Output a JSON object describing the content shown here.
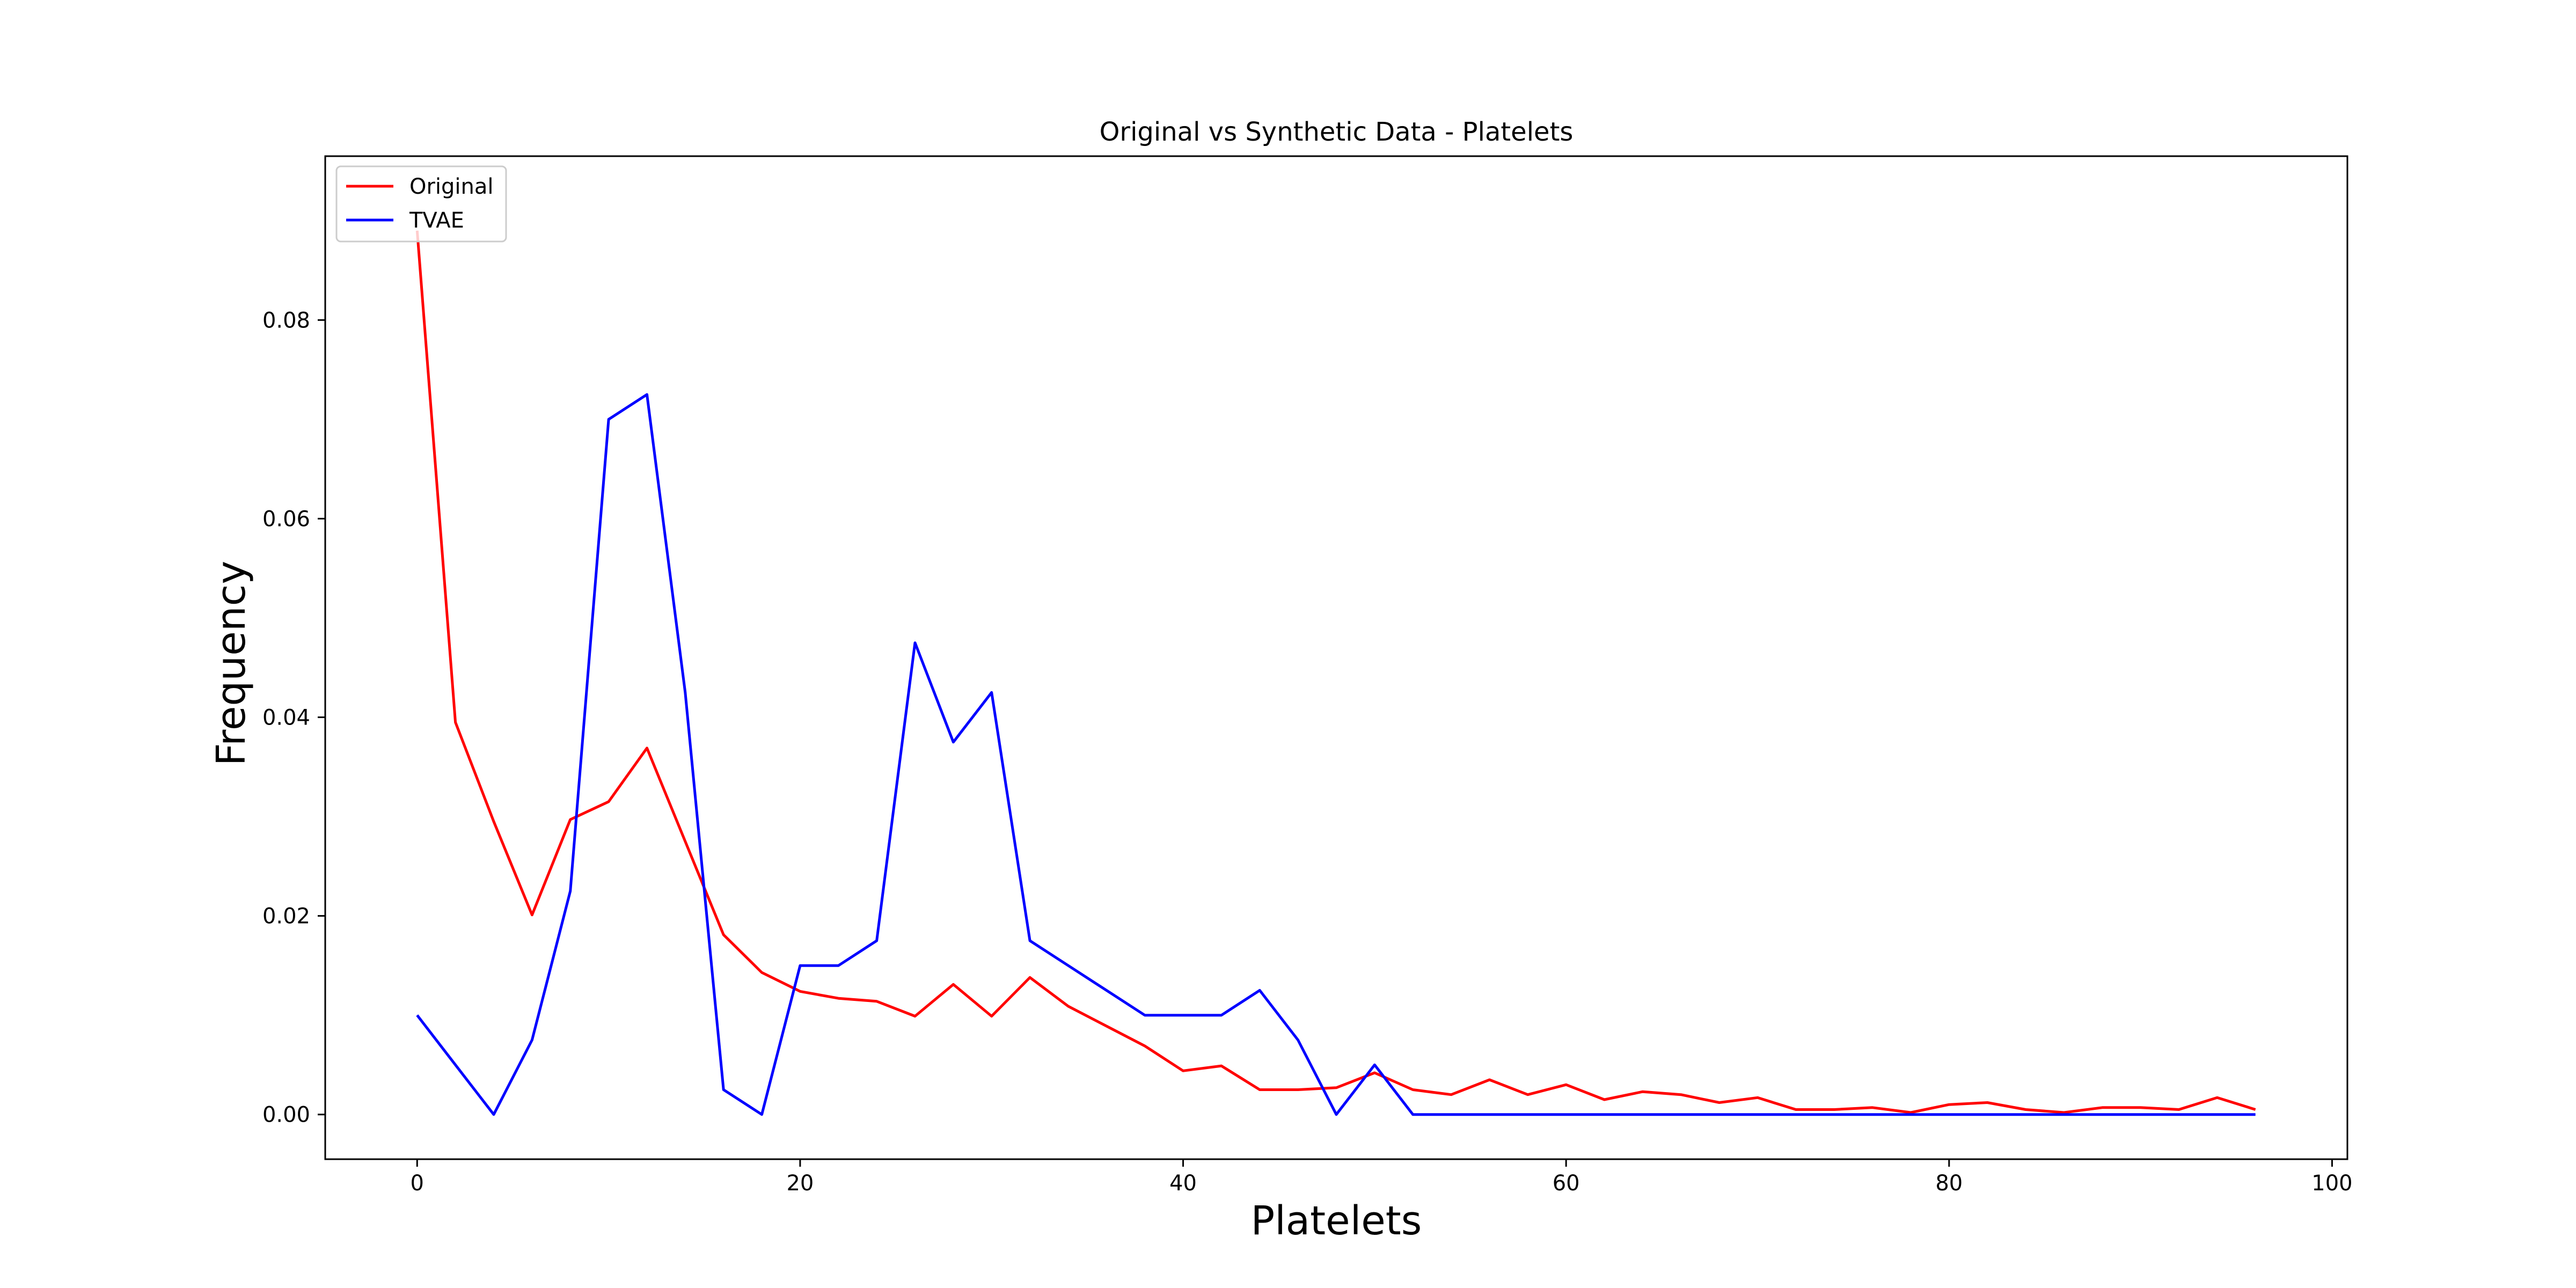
{
  "chart_data": {
    "type": "line",
    "title": "Original vs Synthetic Data - Platelets",
    "xlabel": "Platelets",
    "ylabel": "Frequency",
    "xlim": [
      -4.8,
      100.8
    ],
    "ylim": [
      -0.0045,
      0.0965
    ],
    "xticks": [
      0,
      20,
      40,
      60,
      80,
      100
    ],
    "yticks": [
      0.0,
      0.02,
      0.04,
      0.06,
      0.08
    ],
    "xtick_labels": [
      "0",
      "20",
      "40",
      "60",
      "80",
      "100"
    ],
    "ytick_labels": [
      "0.00",
      "0.02",
      "0.04",
      "0.06",
      "0.08"
    ],
    "grid": false,
    "legend_position": "upper-left",
    "x": [
      0,
      2,
      4,
      6,
      8,
      10,
      12,
      14,
      16,
      18,
      20,
      22,
      24,
      26,
      28,
      30,
      32,
      34,
      36,
      38,
      40,
      42,
      44,
      46,
      48,
      50,
      52,
      54,
      56,
      58,
      60,
      62,
      64,
      66,
      68,
      70,
      72,
      74,
      76,
      78,
      80,
      82,
      84,
      86,
      88,
      90,
      92,
      94,
      96
    ],
    "series": [
      {
        "name": "Original",
        "color": "#ff0000",
        "values": [
          0.089,
          0.0395,
          0.0295,
          0.0201,
          0.0297,
          0.0315,
          0.0369,
          0.0275,
          0.0181,
          0.0143,
          0.0124,
          0.0117,
          0.0114,
          0.0099,
          0.0131,
          0.0099,
          0.0138,
          0.0109,
          0.0089,
          0.0069,
          0.0044,
          0.0049,
          0.0025,
          0.0025,
          0.0027,
          0.0042,
          0.0025,
          0.002,
          0.0035,
          0.002,
          0.003,
          0.0015,
          0.0023,
          0.002,
          0.0012,
          0.0017,
          0.0005,
          0.0005,
          0.0007,
          0.0002,
          0.001,
          0.0012,
          0.0005,
          0.0002,
          0.0007,
          0.0007,
          0.0005,
          0.0017,
          0.0005
        ]
      },
      {
        "name": "TVAE",
        "color": "#0000ff",
        "values": [
          0.01,
          0.005,
          0.0,
          0.0075,
          0.0225,
          0.07,
          0.0725,
          0.0425,
          0.0025,
          0.0,
          0.015,
          0.015,
          0.0175,
          0.0475,
          0.0375,
          0.0425,
          0.0175,
          0.015,
          0.0125,
          0.01,
          0.01,
          0.01,
          0.0125,
          0.0075,
          0.0,
          0.005,
          0.0,
          0.0,
          0.0,
          0.0,
          0.0,
          0.0,
          0.0,
          0.0,
          0.0,
          0.0,
          0.0,
          0.0,
          0.0,
          0.0,
          0.0,
          0.0,
          0.0,
          0.0,
          0.0,
          0.0,
          0.0,
          0.0,
          0.0
        ]
      }
    ]
  }
}
